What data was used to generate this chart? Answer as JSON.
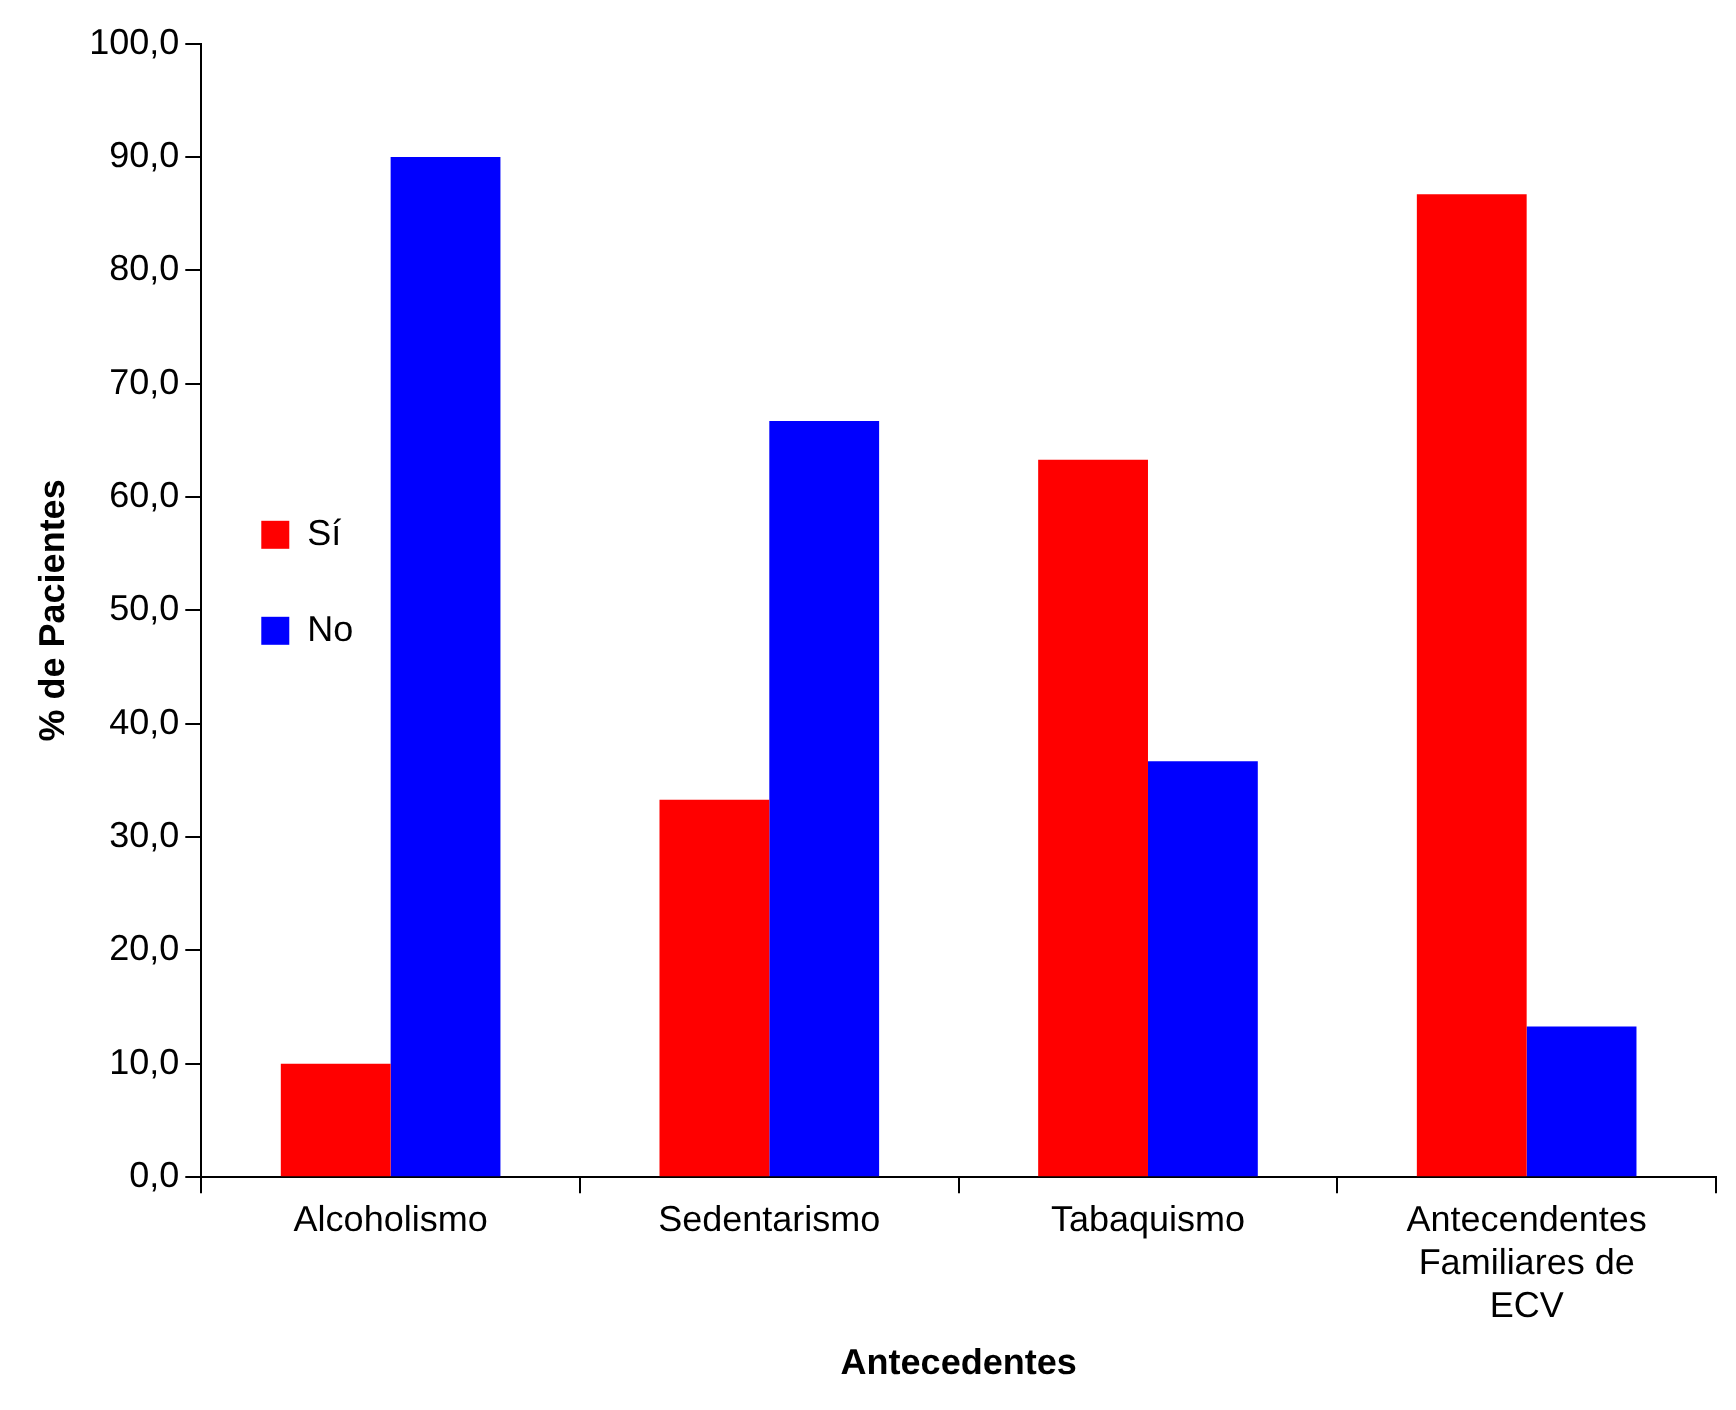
{
  "chart_data": {
    "type": "bar",
    "xlabel": "Antecedentes",
    "ylabel": "% de Pacientes",
    "categories": [
      "Alcoholismo",
      "Sedentarismo",
      "Tabaquismo",
      "Antecendentes Familiares de ECV"
    ],
    "series": [
      {
        "name": "Sí",
        "color": "#ff0000",
        "values": [
          10.0,
          33.3,
          63.3,
          86.7
        ]
      },
      {
        "name": "No",
        "color": "#0000ff",
        "values": [
          90.0,
          66.7,
          36.7,
          13.3
        ]
      }
    ],
    "ylim": [
      0,
      100
    ],
    "yticks": [
      {
        "value": 0,
        "label": "0,0"
      },
      {
        "value": 10,
        "label": "10,0"
      },
      {
        "value": 20,
        "label": "20,0"
      },
      {
        "value": 30,
        "label": "30,0"
      },
      {
        "value": 40,
        "label": "40,0"
      },
      {
        "value": 50,
        "label": "50,0"
      },
      {
        "value": 60,
        "label": "60,0"
      },
      {
        "value": 70,
        "label": "70,0"
      },
      {
        "value": 80,
        "label": "80,0"
      },
      {
        "value": 90,
        "label": "90,0"
      },
      {
        "value": 100,
        "label": "100,0"
      }
    ],
    "legend": "top"
  }
}
